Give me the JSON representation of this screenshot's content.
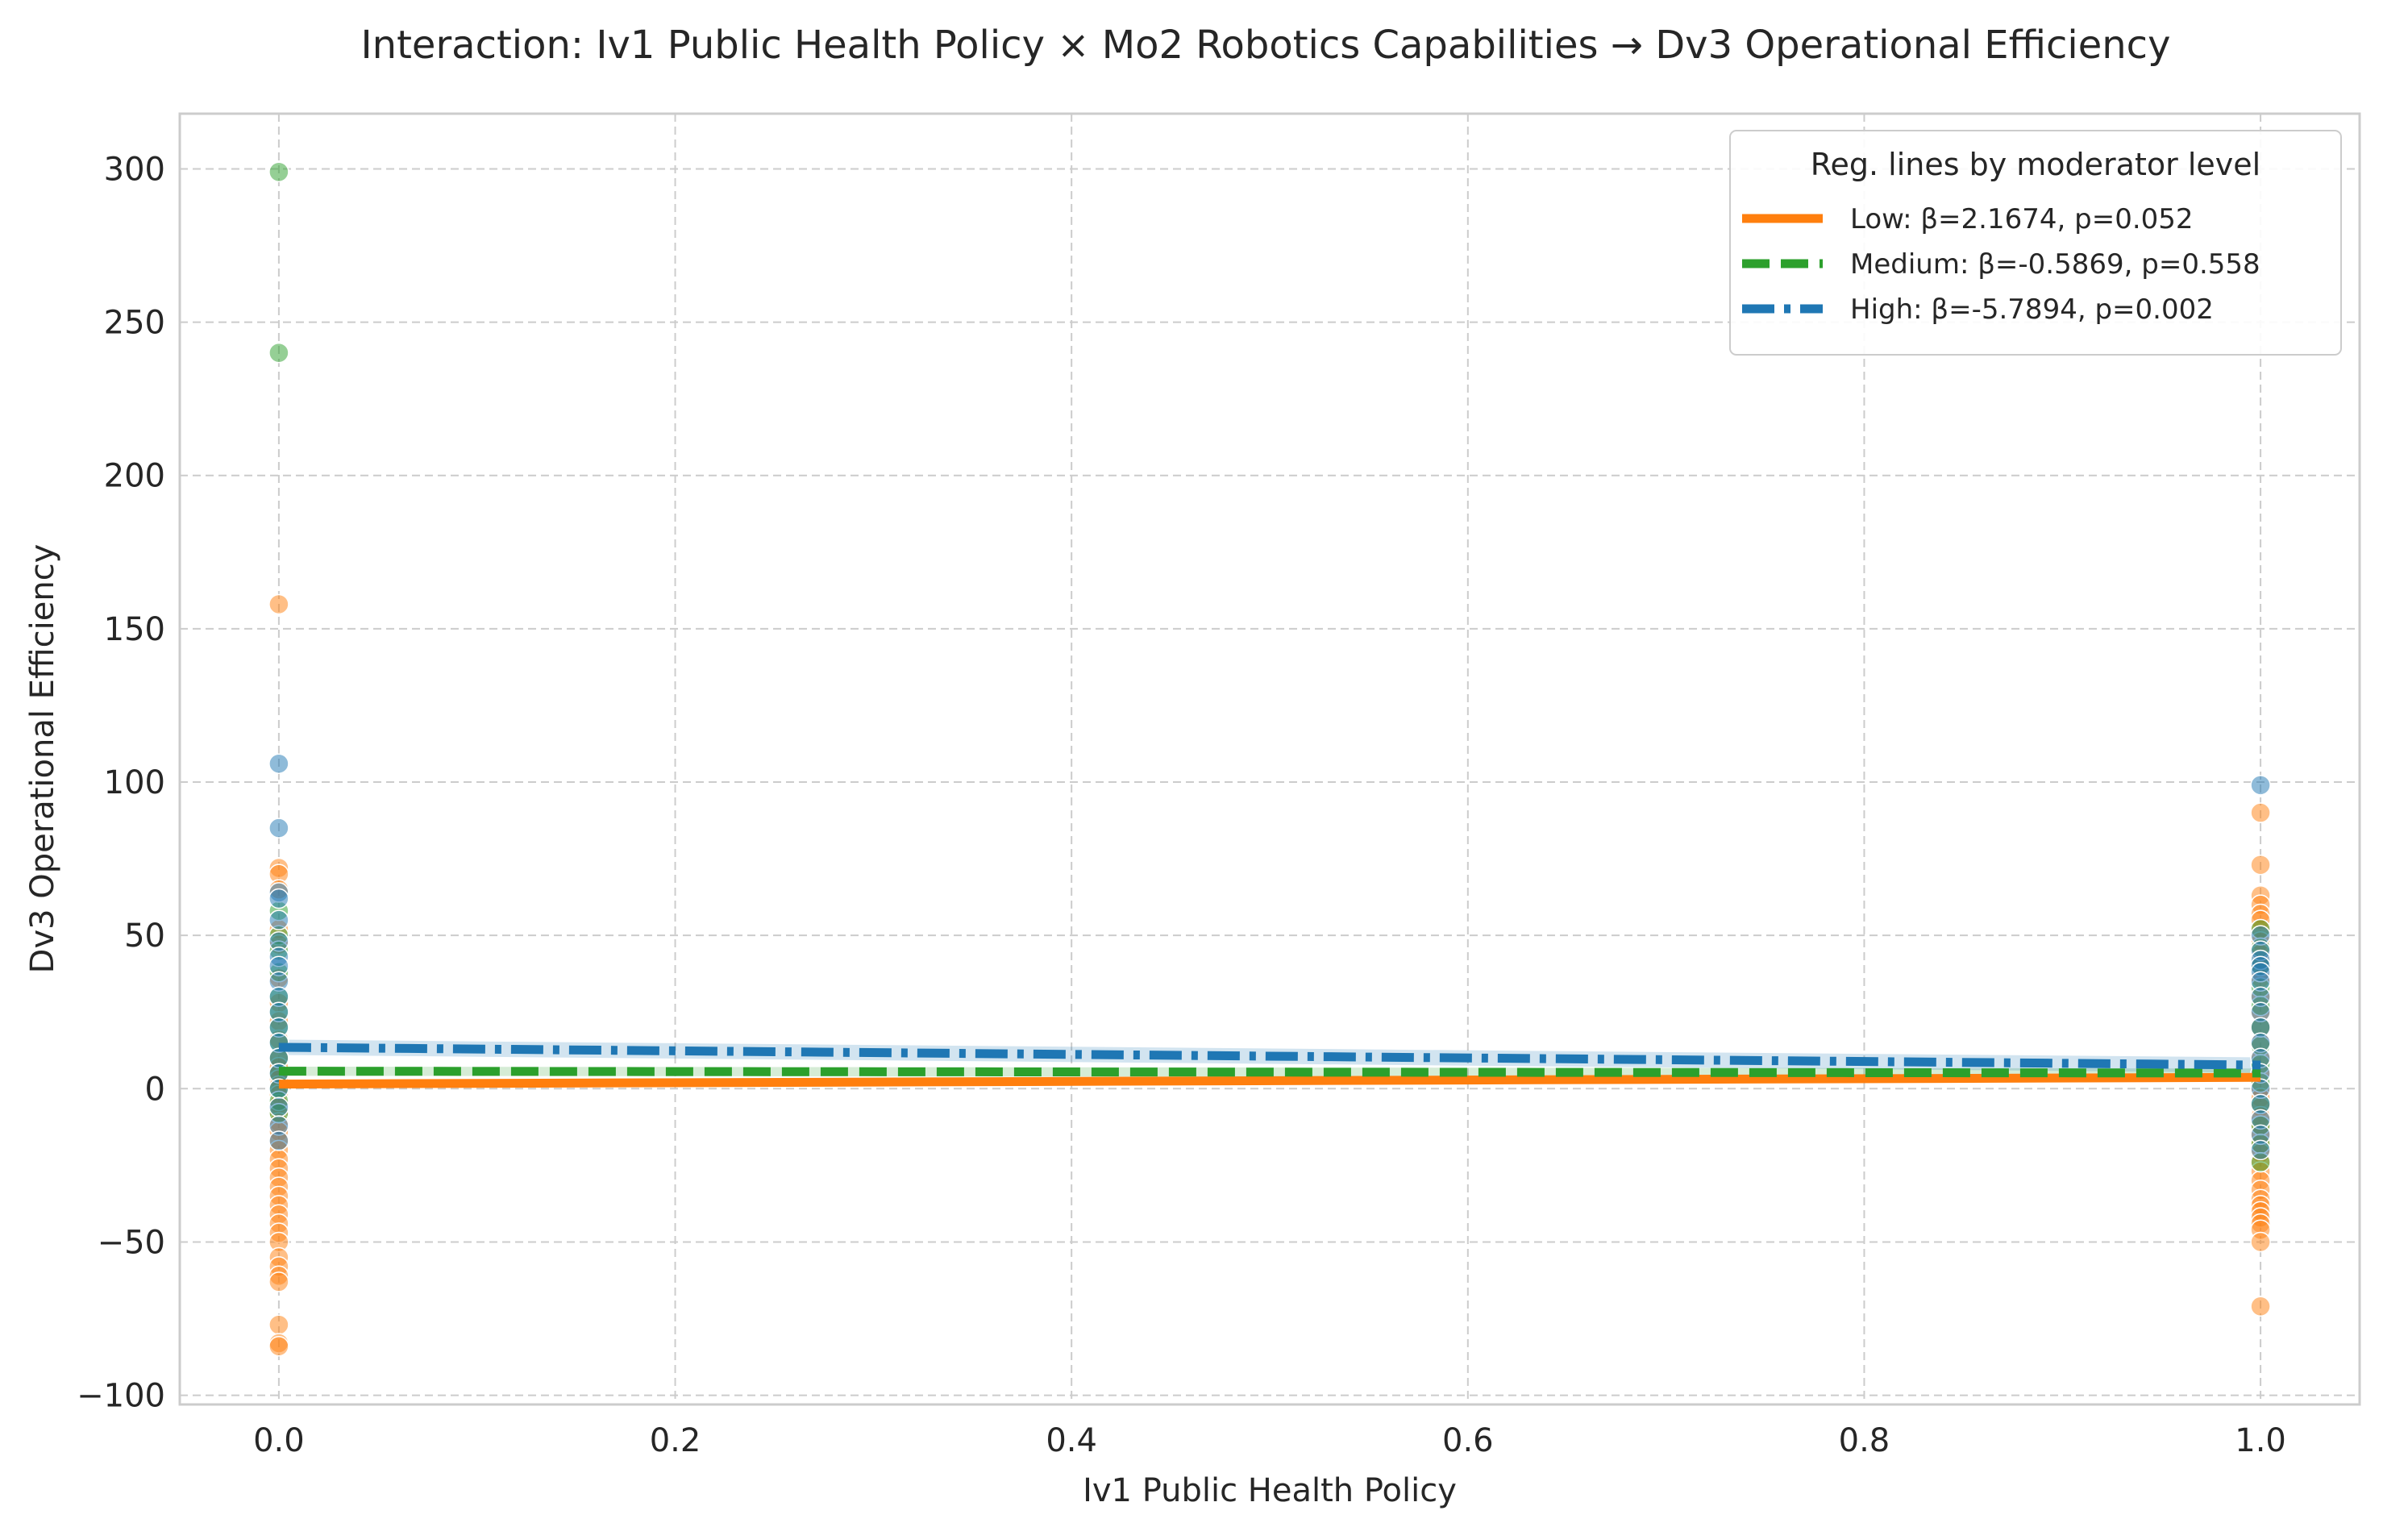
{
  "chart_data": {
    "type": "scatter",
    "title": "Interaction: Iv1 Public Health Policy × Mo2 Robotics Capabilities → Dv3 Operational Efficiency",
    "xlabel": "Iv1 Public Health Policy",
    "ylabel": "Dv3 Operational Efficiency",
    "xlim": [
      -0.05,
      1.05
    ],
    "ylim": [
      -103,
      318
    ],
    "xticks": [
      0.0,
      0.2,
      0.4,
      0.6,
      0.8,
      1.0
    ],
    "xtick_labels": [
      "0.0",
      "0.2",
      "0.4",
      "0.6",
      "0.8",
      "1.0"
    ],
    "yticks": [
      -100,
      -50,
      0,
      50,
      100,
      150,
      200,
      250,
      300
    ],
    "ytick_labels": [
      "−100",
      "−50",
      "0",
      "50",
      "100",
      "150",
      "200",
      "250",
      "300"
    ],
    "grid": true,
    "legend": {
      "title": "Reg. lines by moderator level",
      "placement": "top-right"
    },
    "series": [
      {
        "name": "Low: β=2.1674, p=0.052",
        "color": "#ff7f0e",
        "line_style": "solid",
        "line": {
          "x": [
            0,
            1
          ],
          "y": [
            1.5,
            3.7
          ]
        },
        "ci": {
          "lower": [
            0.5,
            2.7
          ],
          "upper": [
            2.5,
            4.7
          ]
        },
        "points": {
          "x0": [
            158,
            72,
            70,
            65,
            52,
            47,
            36,
            28,
            22,
            16,
            10,
            7,
            5,
            3,
            1,
            -2,
            -5,
            -8,
            -11,
            -14,
            -17,
            -20,
            -23,
            -26,
            -29,
            -32,
            -35,
            -38,
            -41,
            -44,
            -47,
            -50,
            -55,
            -58,
            -61,
            -63,
            -77,
            -83,
            -84
          ],
          "x1": [
            90,
            73,
            63,
            60,
            57,
            55,
            52,
            48,
            44,
            40,
            36,
            30,
            25,
            20,
            15,
            10,
            5,
            0,
            -3,
            -6,
            -9,
            -12,
            -15,
            -18,
            -21,
            -24,
            -27,
            -30,
            -33,
            -36,
            -38,
            -40,
            -42,
            -44,
            -46,
            -50,
            -71
          ]
        }
      },
      {
        "name": "Medium: β=-0.5869, p=0.558",
        "color": "#2ca02c",
        "line_style": "dashed",
        "line": {
          "x": [
            0,
            1
          ],
          "y": [
            5.7,
            5.1
          ]
        },
        "ci": {
          "lower": [
            4.2,
            3.6
          ],
          "upper": [
            7.2,
            6.6
          ]
        },
        "points": {
          "x0": [
            299,
            240,
            58,
            50,
            45,
            38,
            30,
            25,
            20,
            15,
            10,
            5,
            0,
            -4,
            -8
          ],
          "x1": [
            52,
            46,
            40,
            33,
            27,
            20,
            14,
            8,
            2,
            -5,
            -12,
            -18,
            -24
          ]
        }
      },
      {
        "name": "High: β=-5.7894, p=0.002",
        "color": "#1f77b4",
        "line_style": "dashdot",
        "line": {
          "x": [
            0,
            1
          ],
          "y": [
            13.5,
            7.7
          ]
        },
        "ci": {
          "lower": [
            11.0,
            5.2
          ],
          "upper": [
            16.0,
            10.2
          ]
        },
        "points": {
          "x0": [
            106,
            85,
            64,
            62,
            55,
            48,
            43,
            40,
            35,
            30,
            25,
            20,
            15,
            10,
            5,
            0,
            -6,
            -12,
            -17
          ],
          "x1": [
            99,
            50,
            45,
            42,
            40,
            38,
            35,
            30,
            25,
            20,
            15,
            10,
            5,
            0,
            -5,
            -10,
            -15,
            -20
          ]
        }
      }
    ]
  }
}
